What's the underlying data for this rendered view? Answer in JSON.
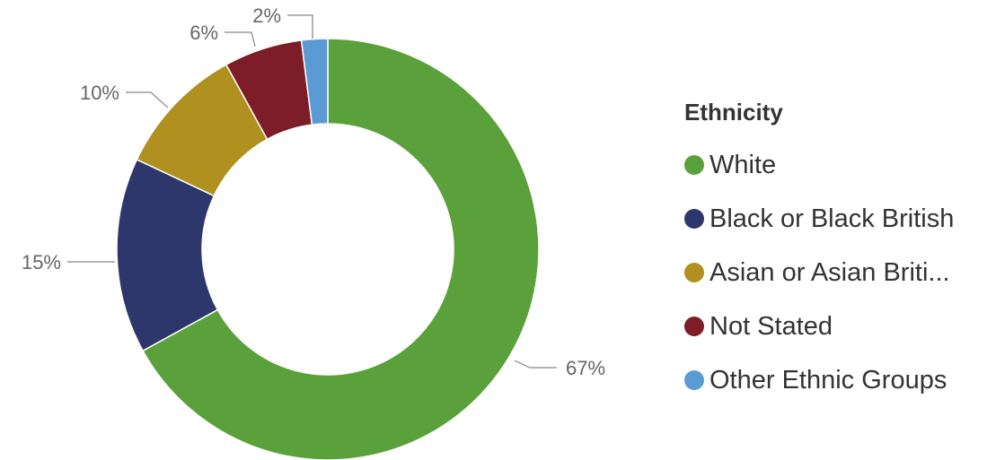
{
  "chart_data": {
    "type": "donut",
    "legend_title": "Ethnicity",
    "categories": [
      "White",
      "Black or Black British",
      "Asian or Asian Briti...",
      "Not Stated",
      "Other Ethnic Groups"
    ],
    "values": [
      67,
      15,
      10,
      6,
      2
    ],
    "value_labels": [
      "67%",
      "15%",
      "10%",
      "6%",
      "2%"
    ],
    "colors": [
      "#5aa13b",
      "#2e376b",
      "#b0901f",
      "#7d1d27",
      "#5b9bd5"
    ],
    "legend_position": "right"
  }
}
